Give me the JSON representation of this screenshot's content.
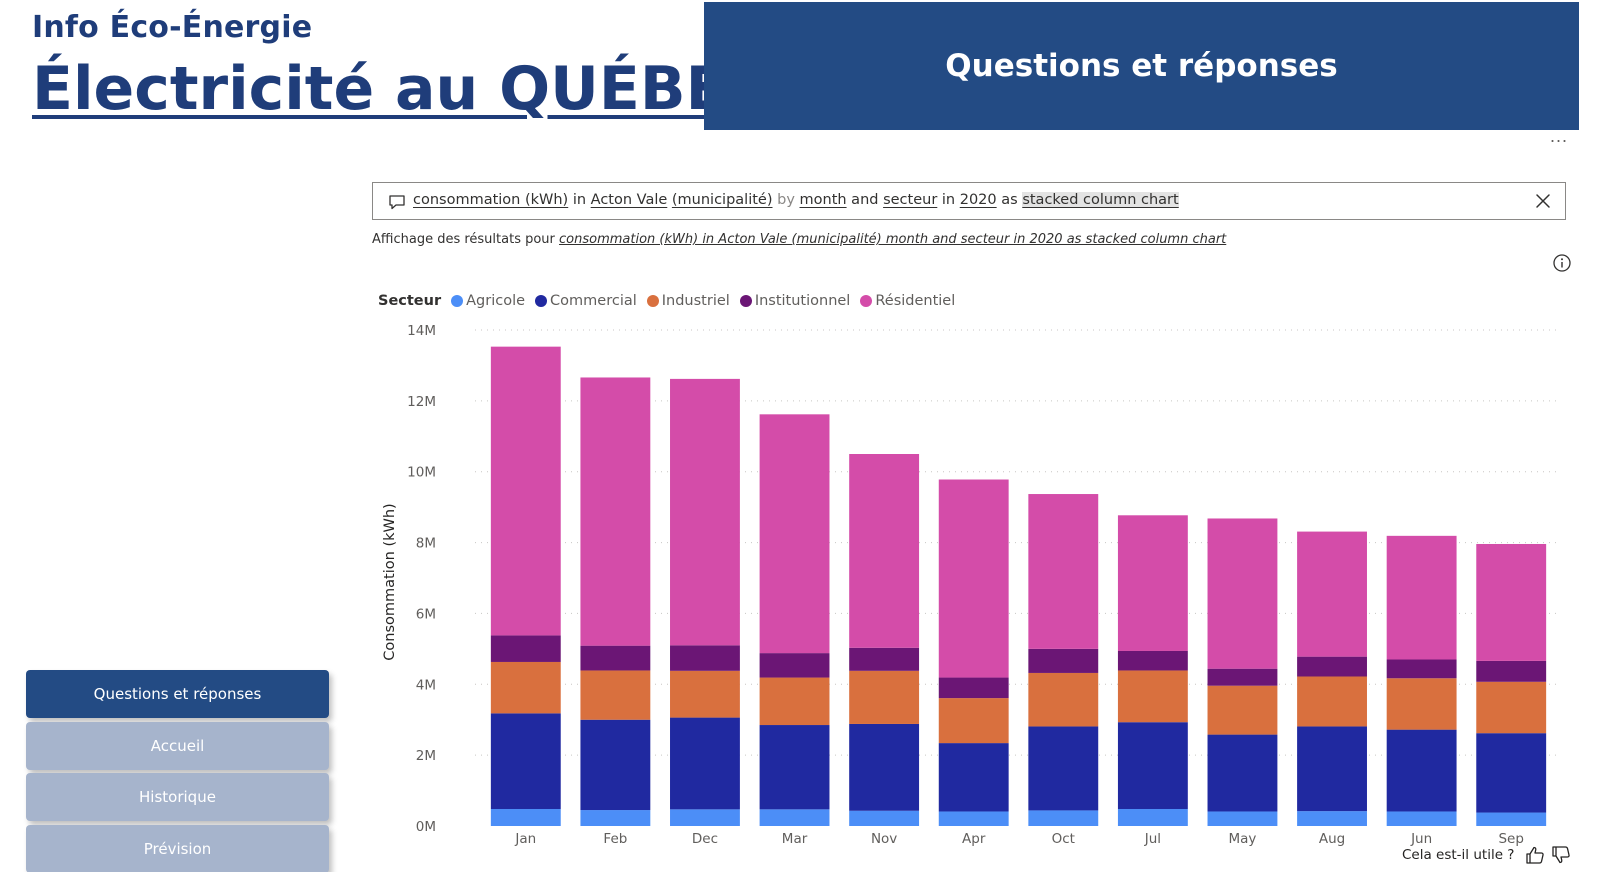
{
  "brand": {
    "subtitle": "Info Éco-Énergie",
    "title": "Électricité au QUÉBEC"
  },
  "header": {
    "title": "Questions et réponses"
  },
  "qa": {
    "tokens": [
      {
        "text": "consommation (kWh)",
        "style": "term"
      },
      {
        "text": " in ",
        "style": "plain"
      },
      {
        "text": "Acton Vale",
        "style": "term"
      },
      {
        "text": " ",
        "style": "plain"
      },
      {
        "text": "(municipalité)",
        "style": "term"
      },
      {
        "text": " by ",
        "style": "keyword"
      },
      {
        "text": "month",
        "style": "term"
      },
      {
        "text": " and ",
        "style": "plain"
      },
      {
        "text": "secteur",
        "style": "term"
      },
      {
        "text": " in ",
        "style": "plain"
      },
      {
        "text": "2020",
        "style": "term"
      },
      {
        "text": " as ",
        "style": "plain"
      },
      {
        "text": "stacked column chart",
        "style": "highlight"
      }
    ],
    "results_prefix": "Affichage des résultats pour ",
    "results_query": "consommation (kWh) in Acton Vale (municipalité) month and secteur in 2020 as stacked column chart"
  },
  "chart_data": {
    "type": "bar",
    "stacked": true,
    "title": "",
    "legend_title": "Secteur",
    "legend_position": "top-left",
    "xlabel": "",
    "ylabel": "Consommation (kWh)",
    "ylim": [
      0,
      14000000
    ],
    "yticks": [
      0,
      2000000,
      4000000,
      6000000,
      8000000,
      10000000,
      12000000,
      14000000
    ],
    "ytick_labels": [
      "0M",
      "2M",
      "4M",
      "6M",
      "8M",
      "10M",
      "12M",
      "14M"
    ],
    "grid": true,
    "categories": [
      "Jan",
      "Feb",
      "Dec",
      "Mar",
      "Nov",
      "Apr",
      "Oct",
      "Jul",
      "May",
      "Aug",
      "Jun",
      "Sep"
    ],
    "series": [
      {
        "name": "Agricole",
        "color": "#4c8ef7",
        "values": [
          480000,
          450000,
          470000,
          470000,
          430000,
          410000,
          440000,
          480000,
          410000,
          420000,
          410000,
          380000
        ]
      },
      {
        "name": "Commercial",
        "color": "#2029a0",
        "values": [
          2700000,
          2550000,
          2590000,
          2380000,
          2450000,
          1930000,
          2370000,
          2450000,
          2170000,
          2390000,
          2310000,
          2240000
        ]
      },
      {
        "name": "Industriel",
        "color": "#d9703e",
        "values": [
          1450000,
          1390000,
          1320000,
          1340000,
          1500000,
          1270000,
          1510000,
          1460000,
          1380000,
          1410000,
          1450000,
          1450000
        ]
      },
      {
        "name": "Institutionnel",
        "color": "#6b1675",
        "values": [
          750000,
          700000,
          720000,
          690000,
          650000,
          580000,
          680000,
          550000,
          480000,
          560000,
          530000,
          590000
        ]
      },
      {
        "name": "Résidentiel",
        "color": "#d44ca9",
        "values": [
          8150000,
          7570000,
          7520000,
          6740000,
          5470000,
          5590000,
          4370000,
          3830000,
          4240000,
          3530000,
          3490000,
          3300000
        ]
      }
    ]
  },
  "nav": {
    "items": [
      {
        "label": "Questions et réponses",
        "active": true
      },
      {
        "label": "Accueil",
        "active": false
      },
      {
        "label": "Historique",
        "active": false
      },
      {
        "label": "Prévision",
        "active": false
      }
    ]
  },
  "feedback": {
    "label": "Cela est-il utile ?"
  },
  "menu": {
    "more": "..."
  }
}
